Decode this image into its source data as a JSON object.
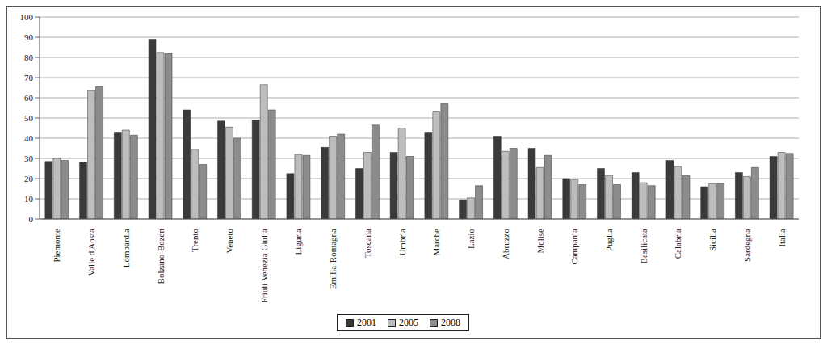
{
  "chart_data": {
    "type": "bar",
    "categories": [
      "Piemonte",
      "Valle d'Aosta",
      "Lombardia",
      "Bolzano-Bozen",
      "Trento",
      "Veneto",
      "Friuli Venezia Giulia",
      "Liguria",
      "Emilia-Romagna",
      "Toscana",
      "Umbria",
      "Marche",
      "Lazio",
      "Abruzzo",
      "Molise",
      "Campania",
      "Puglia",
      "Basilicata",
      "Calabria",
      "Sicilia",
      "Sardegna",
      "Italia"
    ],
    "series": [
      {
        "name": "2001",
        "color": "#3a3a3a",
        "values": [
          28.5,
          28,
          43,
          89,
          54,
          48.5,
          49,
          22.5,
          35.5,
          25,
          33,
          43,
          9.5,
          41,
          35,
          20,
          25,
          23,
          29,
          16,
          23,
          31
        ]
      },
      {
        "name": "2005",
        "color": "#bdbdbd",
        "values": [
          30,
          63.5,
          44,
          82.5,
          34.5,
          45.5,
          66.5,
          32,
          41,
          33,
          45,
          53,
          10.5,
          33.5,
          25.5,
          19.5,
          21.5,
          18,
          26,
          17.5,
          21,
          33
        ]
      },
      {
        "name": "2008",
        "color": "#8c8c8c",
        "values": [
          29,
          65.5,
          41.5,
          82,
          27,
          40,
          54,
          31.5,
          42,
          46.5,
          31,
          57,
          16.5,
          35,
          31.5,
          17,
          17,
          16.5,
          21.5,
          17.5,
          25.5,
          32.5
        ]
      }
    ],
    "ylim": [
      0,
      100
    ],
    "yticks": [
      0,
      10,
      20,
      30,
      40,
      50,
      60,
      70,
      80,
      90,
      100
    ],
    "grid": true,
    "legend": "bottom"
  }
}
